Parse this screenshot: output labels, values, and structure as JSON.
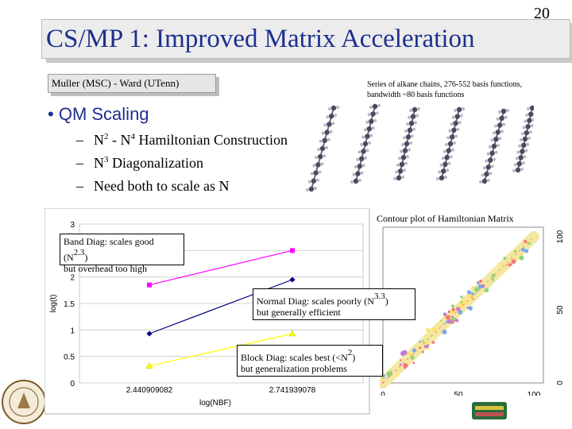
{
  "slide": {
    "number": "20",
    "title": "CS/MP 1: Improved Matrix Acceleration",
    "authors": "Muller (MSC) - Ward (UTenn)",
    "series_caption": "Series of alkane chains, 276-552 basis functions, bandwidth ~80 basis functions",
    "bullet": "QM Scaling",
    "subbullets": [
      {
        "base": "N",
        "exp": "2",
        "mid": " - N",
        "exp2": "4",
        "rest": " Hamiltonian Construction"
      },
      {
        "base": "N",
        "exp": "3",
        "rest": " Diagonalization"
      },
      {
        "text": "Need both to scale as N"
      }
    ],
    "contour_caption": "Contour plot of Hamiltonian Matrix",
    "callouts": {
      "band": {
        "line1_pre": "Band Diag: scales good (N",
        "line1_exp": "2.3",
        "line1_post": ")",
        "line2": "but overhead too high"
      },
      "normal": {
        "line1_pre": "Normal Diag: scales poorly (N",
        "line1_exp": "3.3",
        "line1_post": ")",
        "line2": "but generally efficient"
      },
      "block": {
        "line1_pre": "Block Diag: scales best (<N",
        "line1_exp": "2",
        "line1_post": ")",
        "line2": "but generalization problems"
      }
    }
  },
  "chart_data": [
    {
      "type": "line",
      "title": "",
      "xlabel": "log(NBF)",
      "ylabel": "log(t)",
      "x": [
        2.440909082,
        2.741939078
      ],
      "x_tick_labels": [
        "2.440909082",
        "2.741939078"
      ],
      "ylim": [
        0,
        3
      ],
      "y_ticks": [
        "0",
        "0.5",
        "1",
        "1.5",
        "2",
        "2.5",
        "3"
      ],
      "grid": "horizontal",
      "series": [
        {
          "values": [
            1.85,
            2.5
          ],
          "color": "#ff00ff",
          "marker": "square"
        },
        {
          "values": [
            0.93,
            1.95
          ],
          "color": "#000080",
          "marker": "diamond"
        },
        {
          "values": [
            0.32,
            0.93
          ],
          "color": "#ffff00",
          "marker": "triangle"
        }
      ]
    },
    {
      "type": "heatmap",
      "title": "Contour plot of Hamiltonian Matrix",
      "x_ticks": [
        "0",
        "50",
        "100"
      ],
      "y_ticks": [
        "0",
        "50",
        "100"
      ],
      "xlim": [
        0,
        100
      ],
      "ylim": [
        0,
        100
      ]
    }
  ]
}
